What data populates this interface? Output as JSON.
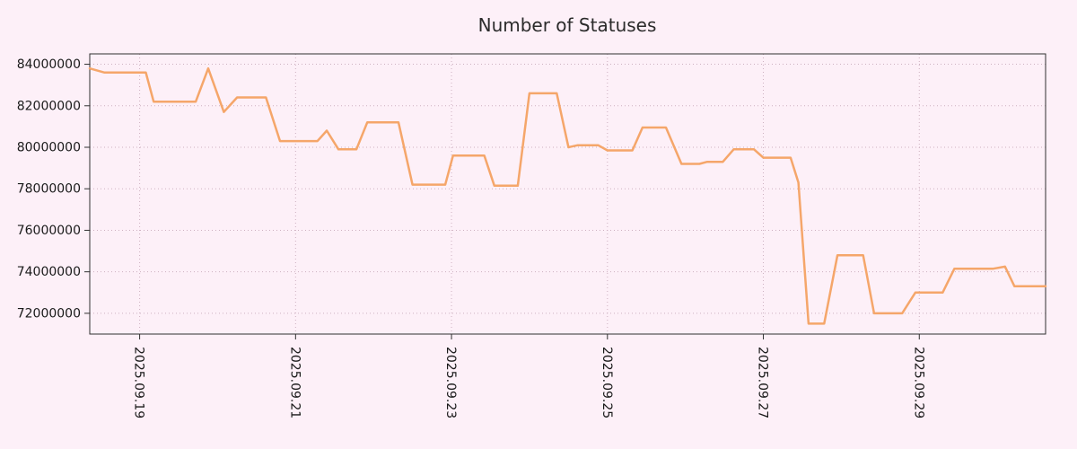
{
  "colors": {
    "background": "#FDF0F8",
    "line": "#F5A66A",
    "grid": "#CDB0C0",
    "frame": "#303030",
    "text": "#1A1A1A"
  },
  "chart_data": {
    "type": "line",
    "title": "Number of Statuses",
    "xlabel": "",
    "ylabel": "",
    "grid": "dotted",
    "legend": "none",
    "xlim": [
      18.36,
      30.62
    ],
    "ylim": [
      71000000,
      84500000
    ],
    "xticks": [
      {
        "label": "2025.09.19",
        "x": 19
      },
      {
        "label": "2025.09.21",
        "x": 21
      },
      {
        "label": "2025.09.23",
        "x": 23
      },
      {
        "label": "2025.09.25",
        "x": 25
      },
      {
        "label": "2025.09.27",
        "x": 27
      },
      {
        "label": "2025.09.29",
        "x": 29
      }
    ],
    "yticks": [
      {
        "label": "72000000",
        "value": 72000000
      },
      {
        "label": "74000000",
        "value": 74000000
      },
      {
        "label": "76000000",
        "value": 76000000
      },
      {
        "label": "78000000",
        "value": 78000000
      },
      {
        "label": "80000000",
        "value": 80000000
      },
      {
        "label": "82000000",
        "value": 82000000
      },
      {
        "label": "84000000",
        "value": 84000000
      }
    ],
    "series": [
      {
        "name": "statuses",
        "color": "#F5A66A",
        "points": [
          [
            18.36,
            83800000
          ],
          [
            18.55,
            83600000
          ],
          [
            19.08,
            83600000
          ],
          [
            19.18,
            82200000
          ],
          [
            19.72,
            82200000
          ],
          [
            19.88,
            83800000
          ],
          [
            20.08,
            81700000
          ],
          [
            20.25,
            82400000
          ],
          [
            20.62,
            82400000
          ],
          [
            20.8,
            80300000
          ],
          [
            21.28,
            80300000
          ],
          [
            21.4,
            80800000
          ],
          [
            21.55,
            79900000
          ],
          [
            21.78,
            79900000
          ],
          [
            21.92,
            81200000
          ],
          [
            22.32,
            81200000
          ],
          [
            22.5,
            78200000
          ],
          [
            22.92,
            78200000
          ],
          [
            23.02,
            79600000
          ],
          [
            23.42,
            79600000
          ],
          [
            23.55,
            78150000
          ],
          [
            23.85,
            78150000
          ],
          [
            24.0,
            82600000
          ],
          [
            24.35,
            82600000
          ],
          [
            24.5,
            80000000
          ],
          [
            24.62,
            80100000
          ],
          [
            24.88,
            80100000
          ],
          [
            25.0,
            79850000
          ],
          [
            25.32,
            79850000
          ],
          [
            25.45,
            80950000
          ],
          [
            25.75,
            80950000
          ],
          [
            25.95,
            79200000
          ],
          [
            26.18,
            79200000
          ],
          [
            26.28,
            79300000
          ],
          [
            26.48,
            79300000
          ],
          [
            26.62,
            79900000
          ],
          [
            26.88,
            79900000
          ],
          [
            27.0,
            79500000
          ],
          [
            27.35,
            79500000
          ],
          [
            27.45,
            78300000
          ],
          [
            27.58,
            71500000
          ],
          [
            27.78,
            71500000
          ],
          [
            27.95,
            74800000
          ],
          [
            28.28,
            74800000
          ],
          [
            28.42,
            72000000
          ],
          [
            28.78,
            72000000
          ],
          [
            28.95,
            73000000
          ],
          [
            29.3,
            73000000
          ],
          [
            29.45,
            74150000
          ],
          [
            29.95,
            74150000
          ],
          [
            30.1,
            74250000
          ],
          [
            30.22,
            73300000
          ],
          [
            30.62,
            73300000
          ]
        ]
      }
    ]
  }
}
